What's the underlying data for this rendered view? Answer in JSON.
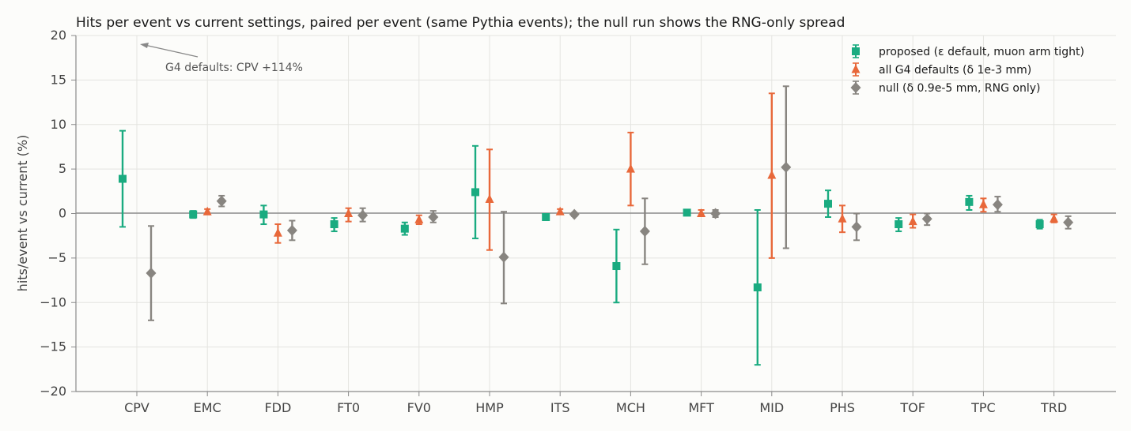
{
  "chart_data": {
    "type": "scatter",
    "title": "Hits per event vs current settings, paired per event (same Pythia events); the null run shows the RNG-only spread",
    "xlabel": "",
    "ylabel": "hits/event vs current (%)",
    "ylim": [
      -20,
      20
    ],
    "yticks": [
      -20,
      -15,
      -10,
      -5,
      0,
      5,
      10,
      15,
      20
    ],
    "ytick_labels": [
      "−20",
      "−15",
      "−10",
      "−5",
      "0",
      "5",
      "10",
      "15",
      "20"
    ],
    "categories": [
      "CPV",
      "EMC",
      "FDD",
      "FT0",
      "FV0",
      "HMP",
      "ITS",
      "MCH",
      "MFT",
      "MID",
      "PHS",
      "TOF",
      "TPC",
      "TRD"
    ],
    "grid": true,
    "legend_position": "top-right",
    "series": [
      {
        "name": "proposed (ε default, muon arm tight)",
        "marker": "square",
        "color": "#1aab80",
        "values": [
          3.9,
          -0.1,
          -0.1,
          -1.2,
          -1.7,
          2.4,
          -0.4,
          -5.9,
          0.1,
          -8.3,
          1.1,
          -1.2,
          1.3,
          -1.2
        ],
        "err_low": [
          -1.5,
          -0.5,
          -1.2,
          -2.0,
          -2.4,
          -2.8,
          -0.6,
          -10.0,
          -0.1,
          -17.0,
          -0.4,
          -2.0,
          0.4,
          -1.7
        ],
        "err_high": [
          9.3,
          0.3,
          0.9,
          -0.5,
          -1.0,
          7.6,
          -0.2,
          -1.8,
          0.3,
          0.4,
          2.6,
          -0.5,
          2.0,
          -0.7
        ]
      },
      {
        "name": "all G4 defaults (δ 1e-3 mm)",
        "marker": "triangle",
        "color": "#e8683a",
        "values": [
          null,
          0.2,
          -2.2,
          0.0,
          -0.7,
          1.6,
          0.2,
          5.0,
          0.0,
          4.3,
          -0.6,
          -0.9,
          1.0,
          -0.6
        ],
        "err_low": [
          null,
          -0.1,
          -3.3,
          -0.9,
          -1.2,
          -4.1,
          0.0,
          0.9,
          -0.3,
          -5.0,
          -2.1,
          -1.6,
          0.2,
          -1.0
        ],
        "err_high": [
          null,
          0.5,
          -1.2,
          0.6,
          -0.2,
          7.2,
          0.5,
          9.1,
          0.4,
          13.5,
          0.9,
          -0.1,
          1.7,
          -0.1
        ]
      },
      {
        "name": "null (δ 0.9e-5 mm, RNG only)",
        "marker": "diamond",
        "color": "#888580",
        "values": [
          -6.7,
          1.4,
          -1.9,
          -0.2,
          -0.4,
          -4.9,
          -0.1,
          -2.0,
          0.0,
          5.2,
          -1.5,
          -0.6,
          1.0,
          -1.0
        ],
        "err_low": [
          -12.0,
          0.8,
          -3.0,
          -0.9,
          -1.0,
          -10.1,
          -0.3,
          -5.7,
          -0.4,
          -3.9,
          -3.0,
          -1.3,
          0.2,
          -1.7
        ],
        "err_high": [
          -1.4,
          2.0,
          -0.8,
          0.6,
          0.3,
          0.2,
          0.1,
          1.7,
          0.4,
          14.3,
          0.0,
          0.0,
          1.9,
          -0.3
        ]
      }
    ],
    "annotations": [
      {
        "text": "G4 defaults: CPV +114%",
        "arrow": "points up-left toward off-scale CPV value"
      }
    ]
  }
}
